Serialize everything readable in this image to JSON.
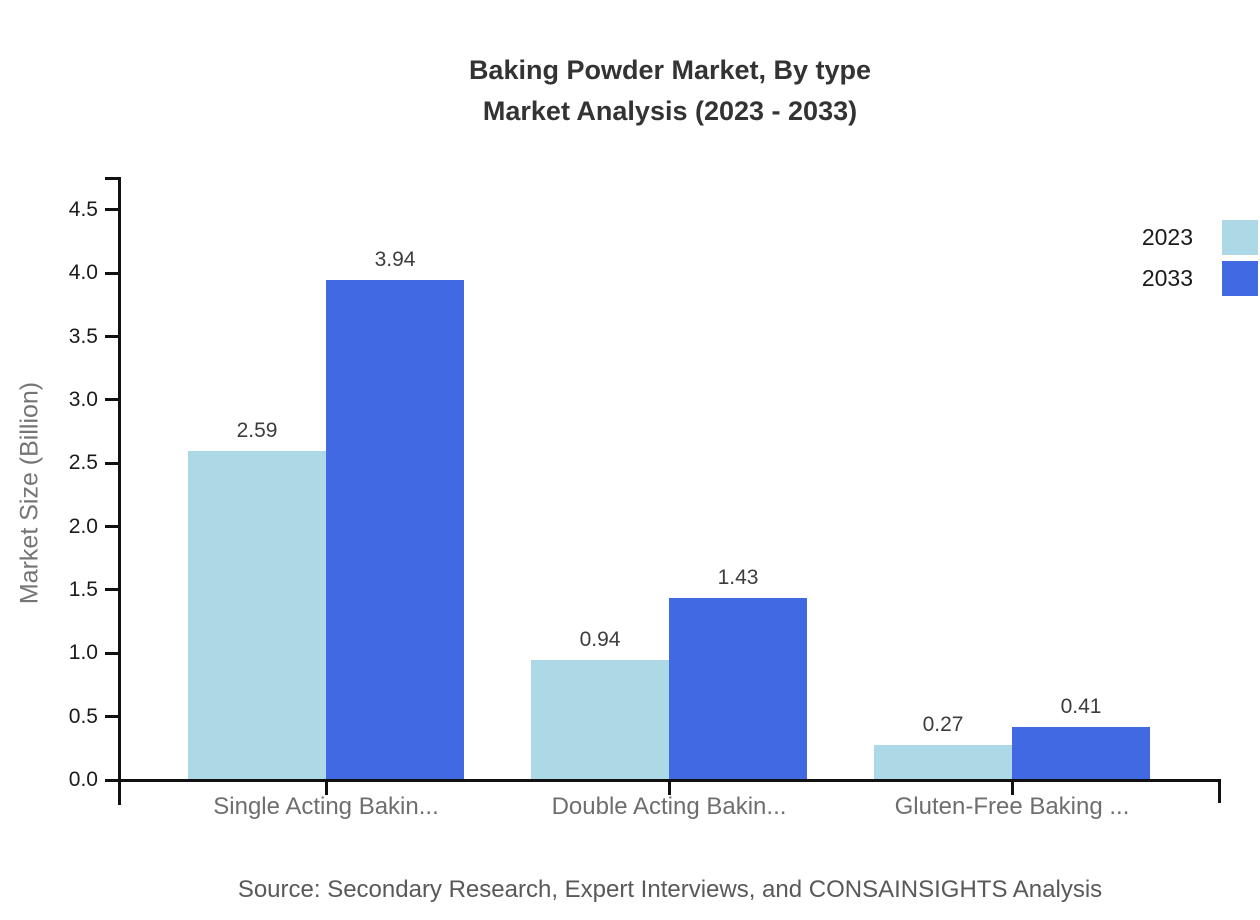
{
  "title": {
    "line1": "Baking Powder Market, By type",
    "line2": "Market Analysis (2023 - 2033)"
  },
  "source_note": "Source: Secondary Research, Expert Interviews, and CONSAINSIGHTS Analysis",
  "legend": {
    "items": [
      {
        "label": "2023",
        "color": "#ADD8E6"
      },
      {
        "label": "2033",
        "color": "#4169E1"
      }
    ]
  },
  "colors": {
    "series_2023": "#ADD8E6",
    "series_2033": "#4169E1",
    "axis": "#111111",
    "title_text": "#333333",
    "tick_label_text": "#1a1a1a",
    "category_text": "#6e6e6e",
    "value_label_text": "#3d3d3d",
    "ylabel_text": "#757575",
    "source_text": "#595959"
  },
  "chart_data": {
    "type": "bar",
    "title": "Baking Powder Market, By type Market Analysis (2023 - 2033)",
    "categories": [
      "Single Acting Bakin...",
      "Double Acting Bakin...",
      "Gluten-Free Baking ..."
    ],
    "series": [
      {
        "name": "2023",
        "color": "#ADD8E6",
        "values": [
          2.59,
          0.94,
          0.27
        ]
      },
      {
        "name": "2033",
        "color": "#4169E1",
        "values": [
          3.94,
          1.43,
          0.41
        ]
      }
    ],
    "value_labels": [
      [
        "2.59",
        "0.94",
        "0.27"
      ],
      [
        "3.94",
        "1.43",
        "0.41"
      ]
    ],
    "xlabel": "",
    "ylabel": "Market Size (Billion)",
    "ylim": [
      0,
      4.5
    ],
    "yticks": [
      0.0,
      0.5,
      1.0,
      1.5,
      2.0,
      2.5,
      3.0,
      3.5,
      4.0,
      4.5
    ],
    "ytick_decimals": 1,
    "value_decimals": 2,
    "grid": false,
    "legend_position": "top-right",
    "axis_color": "#111111"
  }
}
